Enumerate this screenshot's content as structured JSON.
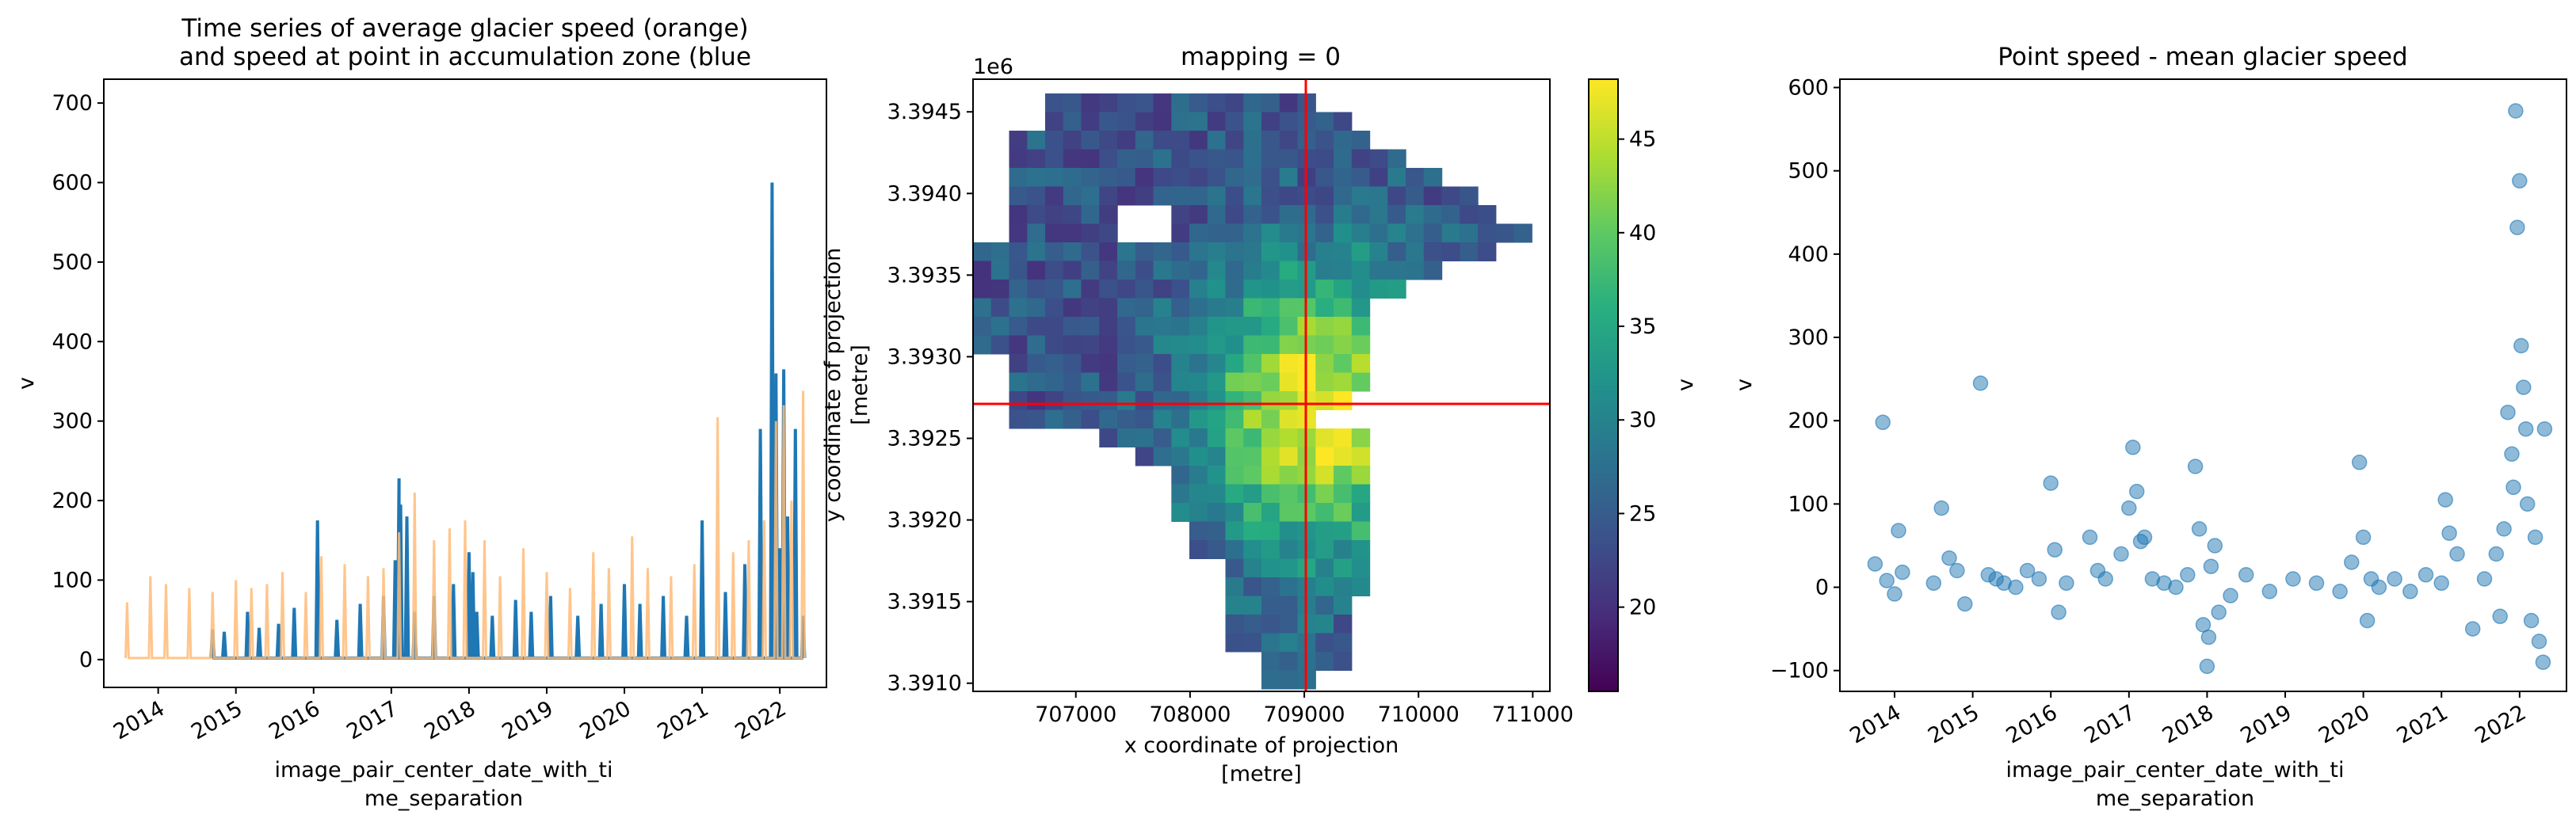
{
  "chart_data": [
    {
      "type": "line",
      "title_line1": "Time series of average glacier speed (orange)",
      "title_line2": "and speed at point in accumulation zone (blue",
      "xlabel_line1": "image_pair_center_date_with_ti",
      "xlabel_line2": "me_separation",
      "ylabel": "v",
      "x_ticks": [
        "2014",
        "2015",
        "2016",
        "2017",
        "2018",
        "2019",
        "2020",
        "2021",
        "2022"
      ],
      "y_ticks": [
        "0",
        "100",
        "200",
        "300",
        "400",
        "500",
        "600",
        "700"
      ],
      "xlim": [
        2013.3,
        2022.6
      ],
      "ylim": [
        -35,
        730
      ],
      "series": [
        {
          "color": "#1f77b4",
          "x": [
            2014.7,
            2014.85,
            2015.15,
            2015.3,
            2015.55,
            2015.75,
            2016.05,
            2016.3,
            2016.6,
            2016.9,
            2017.05,
            2017.1,
            2017.12,
            2017.2,
            2017.3,
            2017.55,
            2017.8,
            2018.0,
            2018.05,
            2018.1,
            2018.3,
            2018.6,
            2018.8,
            2019.05,
            2019.4,
            2019.7,
            2020.0,
            2020.2,
            2020.5,
            2020.8,
            2021.0,
            2021.3,
            2021.55,
            2021.75,
            2021.9,
            2021.95,
            2022.0,
            2022.05,
            2022.1,
            2022.2,
            2022.3
          ],
          "values": [
            38,
            35,
            60,
            40,
            45,
            65,
            175,
            50,
            70,
            80,
            125,
            228,
            195,
            180,
            60,
            80,
            95,
            135,
            110,
            60,
            55,
            75,
            60,
            80,
            55,
            70,
            95,
            70,
            80,
            55,
            175,
            85,
            120,
            290,
            600,
            360,
            140,
            365,
            180,
            290,
            55
          ]
        },
        {
          "color": "#ffbb78",
          "x": [
            2013.6,
            2013.9,
            2014.1,
            2014.4,
            2014.7,
            2015.0,
            2015.2,
            2015.4,
            2015.6,
            2015.9,
            2016.1,
            2016.4,
            2016.7,
            2016.9,
            2017.1,
            2017.3,
            2017.55,
            2017.75,
            2017.95,
            2018.2,
            2018.4,
            2018.7,
            2019.0,
            2019.3,
            2019.6,
            2019.8,
            2020.1,
            2020.3,
            2020.6,
            2020.9,
            2021.2,
            2021.4,
            2021.6,
            2021.8,
            2021.95,
            2022.05,
            2022.15,
            2022.3
          ],
          "values": [
            72,
            105,
            95,
            90,
            85,
            100,
            90,
            95,
            110,
            85,
            130,
            120,
            105,
            115,
            160,
            210,
            150,
            165,
            175,
            150,
            105,
            140,
            110,
            90,
            135,
            115,
            155,
            115,
            105,
            120,
            305,
            135,
            150,
            175,
            300,
            320,
            200,
            338
          ]
        }
      ]
    },
    {
      "type": "heatmap",
      "title": "mapping = 0",
      "offset_label": "1e6",
      "xlabel_line1": "x coordinate of projection",
      "xlabel_line2": "[metre]",
      "ylabel_line1": "y coordinate of projection",
      "ylabel_line2": "[metre]",
      "x_ticks": [
        "707000",
        "708000",
        "709000",
        "710000",
        "711000"
      ],
      "y_ticks": [
        "3.3910",
        "3.3915",
        "3.3920",
        "3.3925",
        "3.3930",
        "3.3935",
        "3.3940",
        "3.3945"
      ],
      "xlim": [
        706100,
        711150
      ],
      "ylim": [
        3390950,
        3394700
      ],
      "crosshair": {
        "x": 709000,
        "y": 3392700,
        "color": "#ff0000"
      },
      "colorbar": {
        "label": "v",
        "ticks": [
          "20",
          "25",
          "30",
          "35",
          "40",
          "45"
        ],
        "vmin": 15.5,
        "vmax": 48.2,
        "colormap": "viridis"
      }
    },
    {
      "type": "scatter",
      "title": "Point speed - mean glacier speed",
      "xlabel_line1": "image_pair_center_date_with_ti",
      "xlabel_line2": "me_separation",
      "ylabel": "v",
      "x_ticks": [
        "2014",
        "2015",
        "2016",
        "2017",
        "2018",
        "2019",
        "2020",
        "2021",
        "2022"
      ],
      "y_ticks": [
        "−100",
        "0",
        "100",
        "200",
        "300",
        "400",
        "500",
        "600"
      ],
      "xlim": [
        2013.3,
        2022.6
      ],
      "ylim": [
        -125,
        610
      ],
      "color": "#1f77b4",
      "x": [
        2013.75,
        2013.85,
        2013.9,
        2014.0,
        2014.05,
        2014.1,
        2014.5,
        2014.6,
        2014.7,
        2014.8,
        2014.9,
        2015.1,
        2015.2,
        2015.3,
        2015.4,
        2015.55,
        2015.7,
        2015.85,
        2016.0,
        2016.05,
        2016.1,
        2016.2,
        2016.5,
        2016.6,
        2016.7,
        2016.9,
        2017.0,
        2017.05,
        2017.1,
        2017.15,
        2017.2,
        2017.3,
        2017.45,
        2017.6,
        2017.75,
        2017.85,
        2017.9,
        2017.95,
        2018.0,
        2018.02,
        2018.05,
        2018.1,
        2018.15,
        2018.3,
        2018.5,
        2018.8,
        2019.1,
        2019.4,
        2019.7,
        2019.85,
        2019.95,
        2020.0,
        2020.05,
        2020.1,
        2020.2,
        2020.4,
        2020.6,
        2020.8,
        2021.0,
        2021.05,
        2021.1,
        2021.2,
        2021.4,
        2021.55,
        2021.7,
        2021.75,
        2021.8,
        2021.85,
        2021.9,
        2021.92,
        2021.95,
        2021.97,
        2022.0,
        2022.02,
        2022.05,
        2022.08,
        2022.1,
        2022.15,
        2022.2,
        2022.25,
        2022.3,
        2022.32
      ],
      "y": [
        28,
        198,
        8,
        -8,
        68,
        18,
        5,
        95,
        35,
        20,
        -20,
        245,
        15,
        10,
        5,
        0,
        20,
        10,
        125,
        45,
        -30,
        5,
        60,
        20,
        10,
        40,
        95,
        168,
        115,
        55,
        60,
        10,
        5,
        0,
        15,
        145,
        70,
        -45,
        -95,
        -60,
        25,
        50,
        -30,
        -10,
        15,
        -5,
        10,
        5,
        -5,
        30,
        150,
        60,
        -40,
        10,
        0,
        10,
        -5,
        15,
        5,
        105,
        65,
        40,
        -50,
        10,
        40,
        -35,
        70,
        210,
        160,
        120,
        572,
        432,
        488,
        290,
        240,
        190,
        100,
        -40,
        60,
        -65,
        -90,
        190
      ]
    }
  ]
}
